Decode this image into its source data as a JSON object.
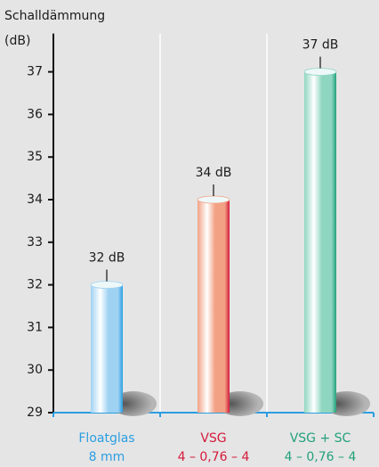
{
  "chart_data": {
    "type": "bar",
    "y_label_lines": [
      "Schalldämmung",
      "(dB)"
    ],
    "categories": [
      [
        "Floatglas",
        "8 mm"
      ],
      [
        "VSG",
        "4 – 0,76 – 4"
      ],
      [
        "VSG + SC",
        "4 – 0,76 – 4"
      ]
    ],
    "values": [
      32,
      34,
      37
    ],
    "value_labels": [
      "32 dB",
      "34 dB",
      "37 dB"
    ],
    "colors": [
      "#9fd2f2",
      "#f2a184",
      "#8fd6c0"
    ],
    "label_colors": [
      "#2b9ee0",
      "#d51a3a",
      "#22a17a"
    ],
    "ylim": [
      29,
      37.9
    ],
    "yticks": [
      29,
      30,
      31,
      32,
      33,
      34,
      35,
      36,
      37
    ]
  }
}
